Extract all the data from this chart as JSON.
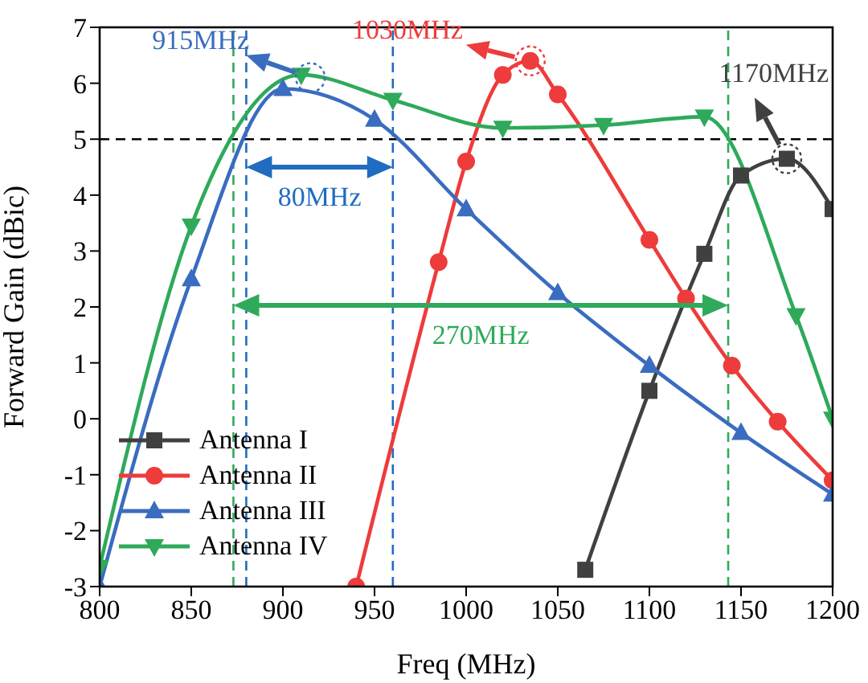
{
  "chart_data": {
    "type": "line",
    "xlabel": "Freq (MHz)",
    "ylabel": "Forward Gain (dBic)",
    "xlim": [
      800,
      1200
    ],
    "xticks": [
      800,
      850,
      900,
      950,
      1000,
      1050,
      1100,
      1150,
      1200
    ],
    "ylim": [
      -3,
      7
    ],
    "yticks": [
      -3,
      -2,
      -1,
      0,
      1,
      2,
      3,
      4,
      5,
      6,
      7
    ],
    "grid": false,
    "legend": "bottom left",
    "line_style": "solid",
    "series": [
      {
        "name": "Antenna I",
        "color": "#404040",
        "marker": "square",
        "x": [
          1065,
          1100,
          1130,
          1150,
          1175,
          1200
        ],
        "values": [
          -2.7,
          0.5,
          2.95,
          4.35,
          4.65,
          3.75
        ]
      },
      {
        "name": "Antenna II",
        "color": "#ee3b3b",
        "marker": "circle",
        "x": [
          940,
          985,
          1000,
          1020,
          1035,
          1050,
          1100,
          1120,
          1145,
          1170,
          1200
        ],
        "values": [
          -3,
          2.8,
          4.6,
          6.15,
          6.4,
          5.8,
          3.2,
          2.15,
          0.95,
          -0.05,
          -1.1
        ]
      },
      {
        "name": "Antenna III",
        "color": "#3a6cc0",
        "marker": "triangle",
        "x": [
          800,
          850,
          900,
          950,
          1000,
          1050,
          1100,
          1150,
          1200
        ],
        "values": [
          -3,
          2.5,
          5.9,
          5.35,
          3.75,
          2.25,
          0.95,
          -0.25,
          -1.35
        ]
      },
      {
        "name": "Antenna IV",
        "color": "#2eaa5a",
        "marker": "triangle-down",
        "x": [
          800,
          850,
          910,
          960,
          1020,
          1075,
          1130,
          1180,
          1200
        ],
        "values": [
          -2.65,
          3.45,
          6.15,
          5.7,
          5.2,
          5.25,
          5.4,
          1.85,
          0
        ]
      }
    ],
    "ref_lines": [
      {
        "axis": "y",
        "value": 5,
        "label": null,
        "color": "#000000",
        "line_style": "dashed"
      },
      {
        "axis": "x",
        "value": 873,
        "label": null,
        "color": "#2eaa5a",
        "line_style": "dashed"
      },
      {
        "axis": "x",
        "value": 1143,
        "label": null,
        "color": "#2eaa5a",
        "line_style": "dashed"
      },
      {
        "axis": "x",
        "value": 880,
        "label": null,
        "color": "#1f6cc0",
        "line_style": "dashed"
      },
      {
        "axis": "x",
        "value": 960,
        "label": null,
        "color": "#1f6cc0",
        "line_style": "dashed"
      }
    ],
    "annotations": [
      {
        "text": "915MHz",
        "x": 915,
        "y": 6.1
      },
      {
        "text": "1030MHz",
        "x": 1035,
        "y": 6.4
      },
      {
        "text": "1170MHz",
        "x": 1175,
        "y": 4.65
      },
      "80MHz",
      "270MHz"
    ]
  }
}
